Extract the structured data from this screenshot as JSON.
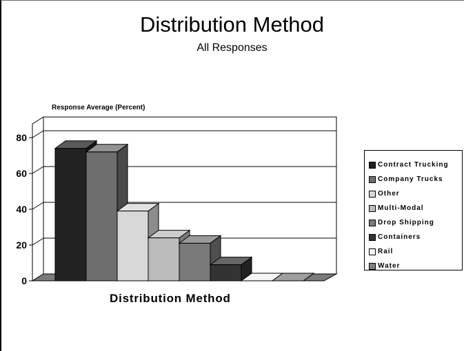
{
  "chart_data": {
    "type": "bar",
    "title": "Distribution Method",
    "subtitle": "All Responses",
    "ylabel": "Response Average (Percent)",
    "xlabel": "Distribution Method",
    "ylim": [
      0,
      80
    ],
    "yticks": [
      0,
      20,
      40,
      60,
      80
    ],
    "grid": true,
    "legend_position": "right",
    "series": [
      {
        "name": "Contract Trucking",
        "value": 74,
        "color": "#222222"
      },
      {
        "name": "Company Trucks",
        "value": 72,
        "color": "#6e6e6e"
      },
      {
        "name": "Other",
        "value": 39,
        "color": "#d8d8d8"
      },
      {
        "name": "Multi-Modal",
        "value": 24,
        "color": "#bcbcbc"
      },
      {
        "name": "Drop Shipping",
        "value": 21,
        "color": "#7a7a7a"
      },
      {
        "name": "Containers",
        "value": 9,
        "color": "#333333"
      },
      {
        "name": "Rail",
        "value": 0,
        "color": "#f2f2f2"
      },
      {
        "name": "Water",
        "value": 0,
        "color": "#808080"
      }
    ]
  }
}
